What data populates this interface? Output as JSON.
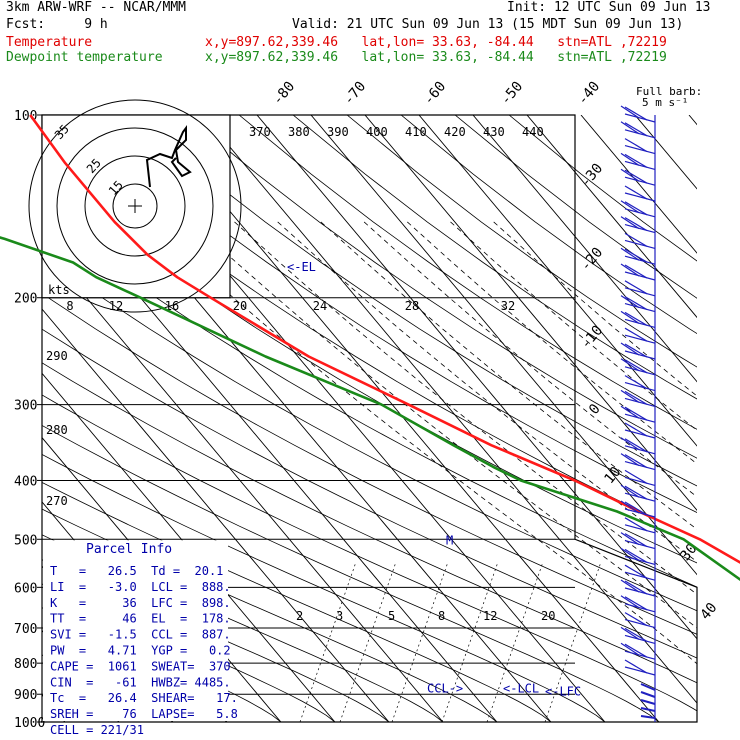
{
  "header": {
    "model": "3km ARW-WRF -- NCAR/MMM",
    "init": "Init: 12 UTC Sun 09 Jun 13",
    "fcst": "Fcst:     9 h",
    "valid": "Valid: 21 UTC Sun 09 Jun 13 (15 MDT Sun 09 Jun 13)",
    "temp_label": "Temperature",
    "temp_loc": "x,y=897.62,339.46   lat,lon= 33.63, -84.44   stn=ATL ,72219",
    "dew_label": "Dewpoint temperature",
    "dew_loc": "x,y=897.62,339.46   lat,lon= 33.63, -84.44   stn=ATL ,72219"
  },
  "barb_header": [
    "Full barb:",
    "5 m s⁻¹"
  ],
  "colors": {
    "temperature": "#ff1a1a",
    "dewpoint": "#1a8a1a",
    "text_blue": "#0000aa",
    "barbs": "#2020c0"
  },
  "chart_data": {
    "type": "skew-t",
    "pressure_levels": [
      100,
      200,
      300,
      400,
      500,
      600,
      700,
      800,
      900,
      1000
    ],
    "temperature_isotherm_labels": [
      "-80",
      "-70",
      "-60",
      "-50",
      "-40",
      "-30",
      "-20",
      "-10",
      "0",
      "10",
      "30",
      "40"
    ],
    "theta_labels_top": [
      "370",
      "380",
      "390",
      "400",
      "410",
      "420",
      "430",
      "440"
    ],
    "theta_labels_side": [
      "290",
      "280",
      "270"
    ],
    "mixing_ratio_labels": [
      "2",
      "3",
      "5",
      "8",
      "12",
      "20"
    ],
    "hodograph": {
      "speed_axis_label": "kts",
      "ring_labels": [
        "15",
        "25",
        "35"
      ],
      "speed_scale_labels": [
        "8",
        "12",
        "16",
        "20",
        "24",
        "28",
        "32"
      ]
    },
    "annotations": [
      "<-EL",
      "M",
      "CCL->",
      "<-LCL",
      "<-LFC"
    ],
    "series": [
      {
        "name": "Temperature",
        "p": [
          100,
          120,
          150,
          170,
          185,
          200,
          250,
          300,
          350,
          400,
          450,
          500,
          600,
          700,
          800,
          850,
          880,
          900,
          920,
          950,
          975
        ],
        "t": [
          -62,
          -63,
          -63,
          -62,
          -60,
          -57,
          -48,
          -37,
          -28,
          -18,
          -11,
          -4,
          4,
          9,
          15,
          19,
          24,
          27,
          28,
          29,
          30
        ]
      },
      {
        "name": "Dewpoint temperature",
        "p": [
          100,
          120,
          140,
          160,
          175,
          185,
          200,
          250,
          300,
          350,
          380,
          400,
          450,
          500,
          600,
          700,
          800,
          850,
          880,
          900,
          950,
          975
        ],
        "t": [
          -98,
          -105,
          -103,
          -86,
          -77,
          -75,
          -70,
          -56,
          -42,
          -35,
          -31,
          -28,
          -15,
          -7,
          -2,
          5,
          12,
          15,
          18,
          20,
          21,
          22
        ]
      }
    ]
  },
  "parcel_info": {
    "title": "Parcel Info",
    "rows": [
      "T   =   26.5  Td =  20.1",
      "LI  =   -3.0  LCL =  888.",
      "K   =     36  LFC =  898.",
      "TT  =     46  EL  =  178.",
      "SVI =   -1.5  CCL =  887.",
      "PW  =   4.71  YGP =   0.2",
      "CAPE =  1061  SWEAT=  370",
      "CIN  =   -61  HWBZ= 4485.",
      "Tc  =   26.4  SHEAR=   17.",
      "SREH =    76  LAPSE=   5.8",
      "CELL = 221/31"
    ]
  }
}
